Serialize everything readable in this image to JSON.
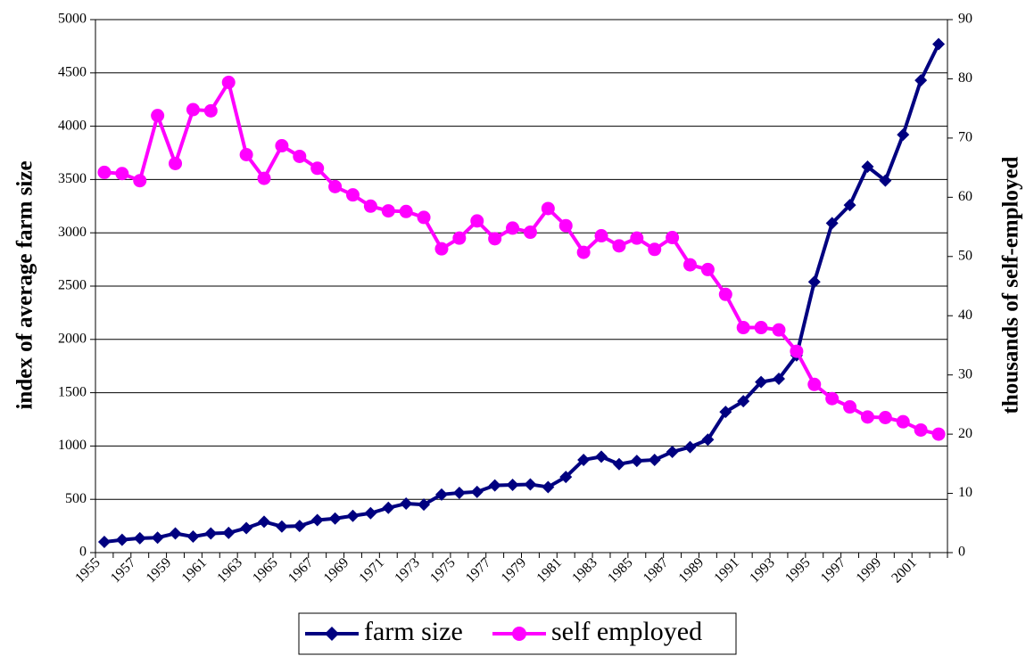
{
  "chart_data": {
    "type": "line",
    "categories": [
      "1955",
      null,
      "1957",
      null,
      "1959",
      null,
      "1961",
      null,
      "1963",
      null,
      "1965",
      null,
      "1967",
      null,
      "1969",
      null,
      "1971",
      null,
      "1973",
      null,
      "1975",
      null,
      "1977",
      null,
      "1979",
      null,
      "1981",
      null,
      "1983",
      null,
      "1985",
      null,
      "1987",
      null,
      "1989",
      null,
      "1991",
      null,
      "1993",
      null,
      "1995",
      null,
      "1997",
      null,
      "1999",
      null,
      "2001",
      null
    ],
    "ylabel": "index of average farm size",
    "y2label": "thousands of self-employed",
    "ylim": [
      0,
      5000
    ],
    "yticks": [
      0,
      500,
      1000,
      1500,
      2000,
      2500,
      3000,
      3500,
      4000,
      4500,
      5000
    ],
    "y2lim": [
      0,
      90
    ],
    "y2ticks": [
      0,
      10,
      20,
      30,
      40,
      50,
      60,
      70,
      80,
      90
    ],
    "grid": true,
    "legend": "bottom",
    "series": [
      {
        "name": "farm size",
        "color": "#000080",
        "marker": "diamond",
        "values": [
          100,
          120,
          135,
          140,
          180,
          150,
          180,
          185,
          230,
          290,
          245,
          250,
          305,
          320,
          345,
          370,
          420,
          460,
          450,
          545,
          560,
          570,
          630,
          635,
          640,
          615,
          710,
          870,
          900,
          830,
          860,
          870,
          945,
          990,
          1060,
          1320,
          1420,
          1600,
          1630,
          1850,
          2540,
          3090,
          3260,
          3620,
          3490,
          3920,
          4430,
          4770
        ]
      },
      {
        "name": "self employed",
        "color": "#ff00ff",
        "marker": "circle",
        "axis": "y2",
        "values": [
          64.2,
          64,
          62.8,
          73.8,
          65.7,
          74.8,
          74.6,
          79.4,
          67.2,
          63.2,
          68.7,
          66.9,
          64.9,
          61.8,
          60.4,
          58.5,
          57.7,
          57.6,
          56.6,
          51.3,
          53.1,
          56,
          53,
          54.8,
          54.1,
          58.1,
          55.2,
          50.7,
          53.5,
          51.8,
          53.1,
          51.2,
          53.2,
          48.6,
          47.8,
          43.6,
          38,
          38,
          37.6,
          34,
          28.4,
          26,
          24.6,
          22.9,
          22.8,
          22.1,
          20.7,
          20
        ]
      }
    ]
  }
}
